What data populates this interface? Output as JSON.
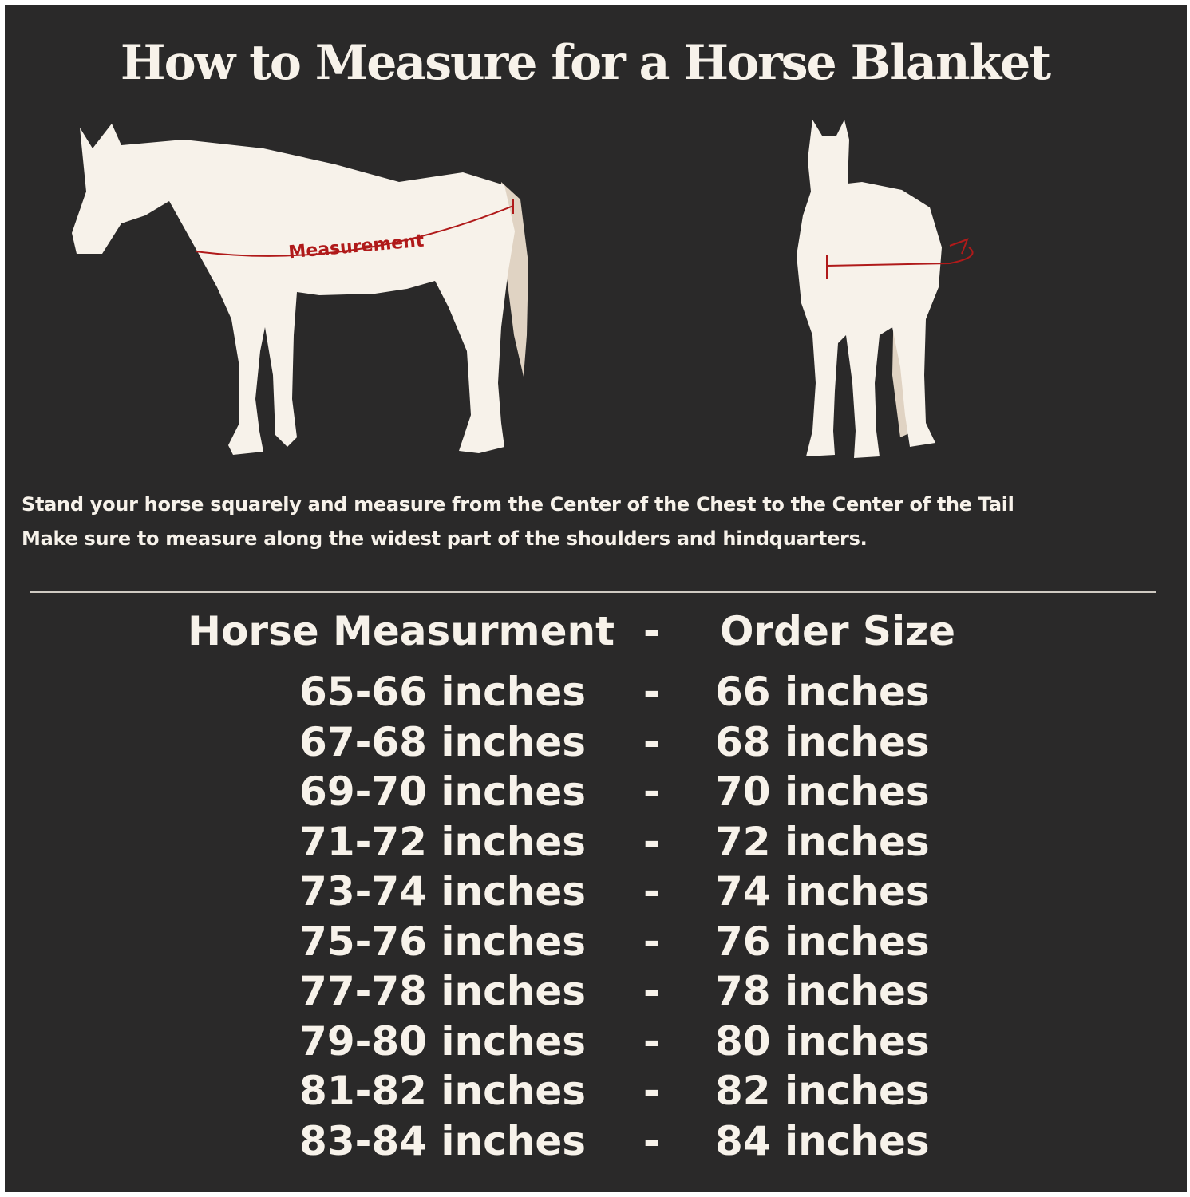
{
  "title": "How to Measure for a Horse Blanket",
  "diagram": {
    "measurement_label": "Measurement",
    "colors": {
      "background": "#2a2929",
      "horse": "#f7f2ea",
      "tail": "#e0d3c3",
      "measure_line": "#b01a1a"
    }
  },
  "instructions": [
    "Stand your horse squarely and measure from the Center of the Chest to the Center of the Tail",
    "Make sure to measure along the widest part of the shoulders and hindquarters."
  ],
  "table": {
    "header": {
      "measurement": "Horse Measurment",
      "separator": "-",
      "size": "Order Size"
    },
    "rows": [
      {
        "measurement": "65-66 inches",
        "separator": "-",
        "size": "66 inches"
      },
      {
        "measurement": "67-68 inches",
        "separator": "-",
        "size": "68 inches"
      },
      {
        "measurement": "69-70 inches",
        "separator": "-",
        "size": "70 inches"
      },
      {
        "measurement": "71-72 inches",
        "separator": "-",
        "size": "72 inches"
      },
      {
        "measurement": "73-74 inches",
        "separator": "-",
        "size": "74 inches"
      },
      {
        "measurement": "75-76 inches",
        "separator": "-",
        "size": "76 inches"
      },
      {
        "measurement": "77-78 inches",
        "separator": "-",
        "size": "78 inches"
      },
      {
        "measurement": "79-80 inches",
        "separator": "-",
        "size": "80 inches"
      },
      {
        "measurement": "81-82 inches",
        "separator": "-",
        "size": "82 inches"
      },
      {
        "measurement": "83-84 inches",
        "separator": "-",
        "size": "84 inches"
      }
    ]
  }
}
